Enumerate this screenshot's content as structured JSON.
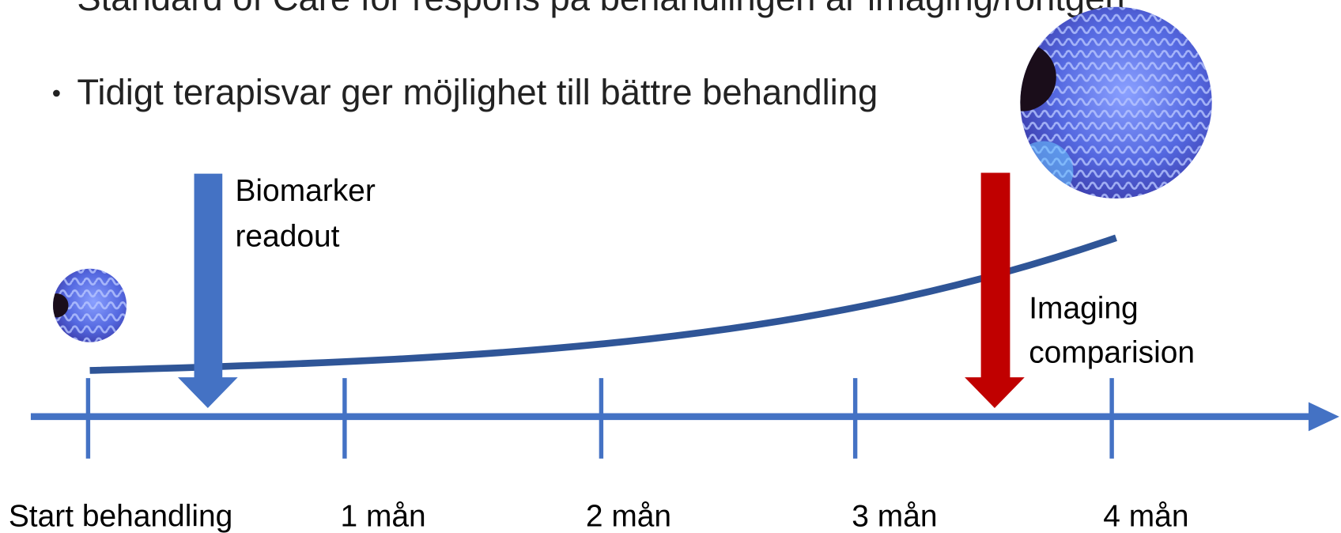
{
  "bullets": [
    "Standard of Care för respons på behandlingen är imaging/röntgen",
    "Tidigt terapisvar ger möjlighet till bättre behandling"
  ],
  "markers": [
    {
      "label": [
        "Biomarker",
        "readout"
      ]
    },
    {
      "label": [
        "Imaging",
        "comparision"
      ]
    }
  ],
  "timeline": {
    "labels": [
      "Start behandling",
      "1 mån",
      "2 mån",
      "3 mån",
      "4 mån"
    ]
  }
}
